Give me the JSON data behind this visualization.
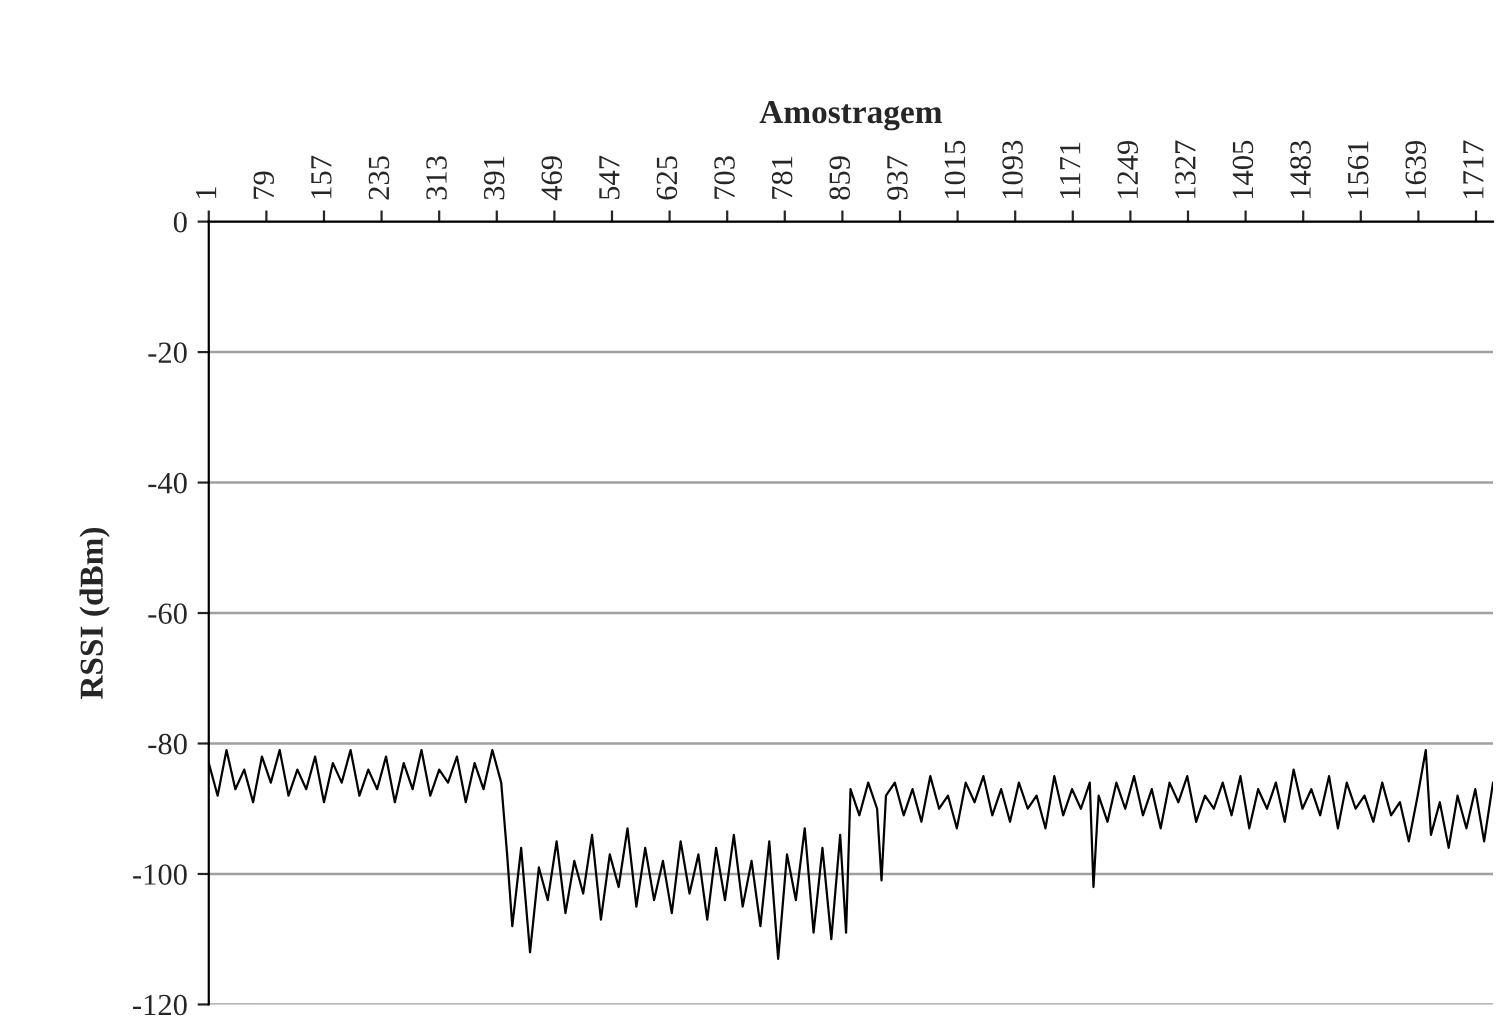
{
  "chart_data": {
    "type": "line",
    "xlabel": "Amostragem",
    "ylabel": "RSSI (dBm)",
    "x": [
      1,
      13,
      25,
      37,
      49,
      61,
      73,
      85,
      97,
      109,
      121,
      133,
      145,
      157,
      169,
      181,
      193,
      205,
      217,
      229,
      241,
      253,
      265,
      277,
      289,
      301,
      313,
      325,
      337,
      349,
      361,
      373,
      385,
      397,
      405,
      412,
      424,
      436,
      448,
      460,
      472,
      484,
      496,
      508,
      520,
      532,
      544,
      556,
      568,
      580,
      592,
      604,
      616,
      628,
      640,
      652,
      664,
      676,
      688,
      700,
      712,
      724,
      736,
      748,
      760,
      772,
      784,
      796,
      808,
      820,
      832,
      844,
      856,
      864,
      870,
      882,
      894,
      906,
      912,
      918,
      930,
      942,
      954,
      966,
      978,
      990,
      1002,
      1014,
      1026,
      1038,
      1050,
      1062,
      1074,
      1086,
      1098,
      1110,
      1122,
      1134,
      1146,
      1158,
      1170,
      1182,
      1194,
      1199,
      1206,
      1218,
      1230,
      1242,
      1254,
      1266,
      1278,
      1290,
      1302,
      1314,
      1326,
      1338,
      1350,
      1362,
      1374,
      1386,
      1398,
      1410,
      1422,
      1434,
      1446,
      1458,
      1470,
      1482,
      1494,
      1506,
      1518,
      1530,
      1542,
      1554,
      1566,
      1578,
      1590,
      1602,
      1614,
      1626,
      1638,
      1649,
      1656,
      1668,
      1680,
      1692,
      1704,
      1716,
      1728,
      1740
    ],
    "series": [
      {
        "color": "#000000",
        "values": [
          -83,
          -88,
          -81,
          -87,
          -84,
          -89,
          -82,
          -86,
          -81,
          -88,
          -84,
          -87,
          -82,
          -89,
          -83,
          -86,
          -81,
          -88,
          -84,
          -87,
          -82,
          -89,
          -83,
          -87,
          -81,
          -88,
          -84,
          -86,
          -82,
          -89,
          -83,
          -87,
          -81,
          -86,
          -97,
          -108,
          -96,
          -112,
          -99,
          -104,
          -95,
          -106,
          -98,
          -103,
          -94,
          -107,
          -97,
          -102,
          -93,
          -105,
          -96,
          -104,
          -98,
          -106,
          -95,
          -103,
          -97,
          -107,
          -96,
          -104,
          -94,
          -105,
          -98,
          -108,
          -95,
          -113,
          -97,
          -104,
          -93,
          -109,
          -96,
          -110,
          -94,
          -109,
          -87,
          -91,
          -86,
          -90,
          -101,
          -88,
          -86,
          -91,
          -87,
          -92,
          -85,
          -90,
          -88,
          -93,
          -86,
          -89,
          -85,
          -91,
          -87,
          -92,
          -86,
          -90,
          -88,
          -93,
          -85,
          -91,
          -87,
          -90,
          -86,
          -102,
          -88,
          -92,
          -86,
          -90,
          -85,
          -91,
          -87,
          -93,
          -86,
          -89,
          -85,
          -92,
          -88,
          -90,
          -86,
          -91,
          -85,
          -93,
          -87,
          -90,
          -86,
          -92,
          -84,
          -90,
          -87,
          -91,
          -85,
          -93,
          -86,
          -90,
          -88,
          -92,
          -86,
          -91,
          -89,
          -95,
          -88,
          -81,
          -94,
          -89,
          -96,
          -88,
          -93,
          -87,
          -95,
          -86
        ]
      }
    ],
    "xlim": [
      1,
      1740
    ],
    "xticks": [
      1,
      79,
      157,
      235,
      313,
      391,
      469,
      547,
      625,
      703,
      781,
      859,
      937,
      1015,
      1093,
      1171,
      1249,
      1327,
      1405,
      1483,
      1561,
      1639,
      1717
    ],
    "ylim": [
      -120,
      0
    ],
    "yticks": [
      0,
      -20,
      -40,
      -60,
      -80,
      -100,
      -120
    ],
    "grid": "y",
    "marker": "none",
    "line_style": "solid"
  }
}
